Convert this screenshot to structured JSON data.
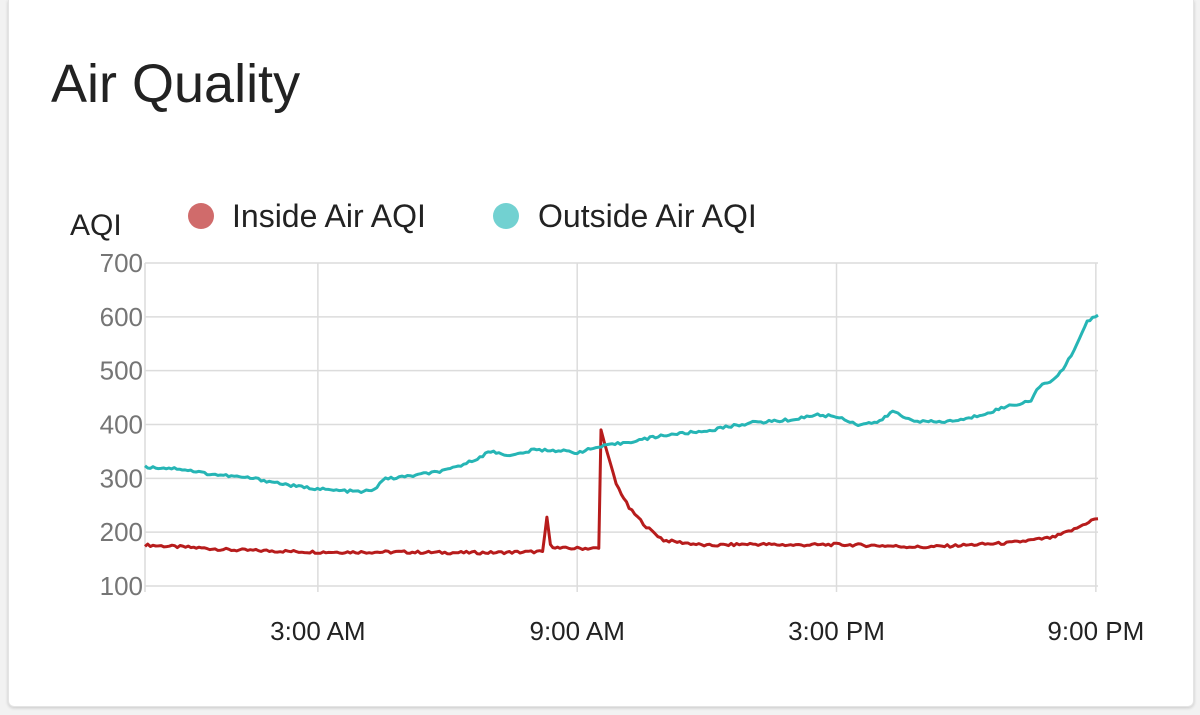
{
  "card": {
    "title": "Air Quality"
  },
  "chart_data": {
    "type": "line",
    "ylabel": "AQI",
    "ylim": [
      100,
      700
    ],
    "y_ticks": [
      "700",
      "600",
      "500",
      "400",
      "300",
      "200",
      "100"
    ],
    "y_tick_values": [
      700,
      600,
      500,
      400,
      300,
      200,
      100
    ],
    "x_range_hours": [
      -1,
      21.05
    ],
    "x_ticks": [
      {
        "label": "3:00 AM",
        "hour": 3
      },
      {
        "label": "9:00 AM",
        "hour": 9
      },
      {
        "label": "3:00 PM",
        "hour": 15
      },
      {
        "label": "9:00 PM",
        "hour": 21
      }
    ],
    "grid": true,
    "legend_position": "top",
    "series": [
      {
        "name": "Inside Air AQI",
        "color": "#b71c1c",
        "legend_color": "#d06b6b",
        "points": [
          [
            -1.0,
            176
          ],
          [
            0.0,
            172
          ],
          [
            1.0,
            167
          ],
          [
            2.0,
            165
          ],
          [
            3.0,
            163
          ],
          [
            4.0,
            163
          ],
          [
            5.0,
            163
          ],
          [
            6.0,
            162
          ],
          [
            7.0,
            162
          ],
          [
            7.8,
            163
          ],
          [
            8.2,
            164
          ],
          [
            8.3,
            228
          ],
          [
            8.38,
            175
          ],
          [
            8.6,
            170
          ],
          [
            9.0,
            170
          ],
          [
            9.5,
            170
          ],
          [
            9.55,
            390
          ],
          [
            9.7,
            345
          ],
          [
            9.9,
            290
          ],
          [
            10.2,
            245
          ],
          [
            10.6,
            210
          ],
          [
            11.0,
            185
          ],
          [
            11.5,
            180
          ],
          [
            12.0,
            175
          ],
          [
            13.0,
            178
          ],
          [
            14.0,
            176
          ],
          [
            15.0,
            177
          ],
          [
            16.0,
            175
          ],
          [
            17.0,
            172
          ],
          [
            18.0,
            176
          ],
          [
            19.0,
            180
          ],
          [
            20.0,
            190
          ],
          [
            20.5,
            205
          ],
          [
            20.9,
            222
          ],
          [
            21.05,
            225
          ]
        ]
      },
      {
        "name": "Outside Air AQI",
        "color": "#26b5b5",
        "legend_color": "#72d1d1",
        "points": [
          [
            -1.0,
            321
          ],
          [
            -0.2,
            318
          ],
          [
            0.5,
            308
          ],
          [
            1.5,
            300
          ],
          [
            2.5,
            285
          ],
          [
            3.3,
            278
          ],
          [
            4.0,
            275
          ],
          [
            4.3,
            278
          ],
          [
            4.5,
            298
          ],
          [
            5.2,
            305
          ],
          [
            6.0,
            315
          ],
          [
            6.5,
            330
          ],
          [
            7.0,
            350
          ],
          [
            7.5,
            342
          ],
          [
            8.0,
            353
          ],
          [
            8.5,
            352
          ],
          [
            9.0,
            348
          ],
          [
            9.5,
            358
          ],
          [
            10.0,
            365
          ],
          [
            10.5,
            372
          ],
          [
            11.0,
            380
          ],
          [
            12.0,
            388
          ],
          [
            12.5,
            396
          ],
          [
            13.0,
            403
          ],
          [
            14.0,
            409
          ],
          [
            14.5,
            418
          ],
          [
            15.0,
            415
          ],
          [
            15.5,
            400
          ],
          [
            16.0,
            405
          ],
          [
            16.3,
            425
          ],
          [
            16.6,
            412
          ],
          [
            17.0,
            405
          ],
          [
            17.5,
            405
          ],
          [
            18.0,
            410
          ],
          [
            18.5,
            422
          ],
          [
            19.0,
            435
          ],
          [
            19.3,
            440
          ],
          [
            19.5,
            445
          ],
          [
            19.7,
            472
          ],
          [
            20.0,
            480
          ],
          [
            20.3,
            510
          ],
          [
            20.5,
            540
          ],
          [
            20.8,
            590
          ],
          [
            21.05,
            603
          ]
        ]
      }
    ]
  }
}
